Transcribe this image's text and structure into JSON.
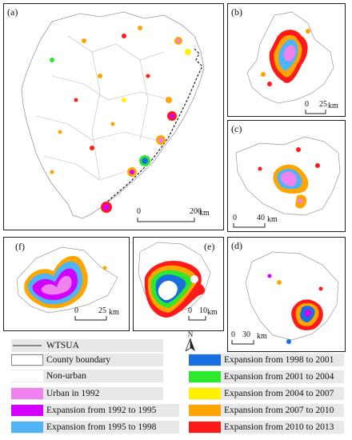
{
  "panels": {
    "a": {
      "label": "(a)",
      "scale_zero": "0",
      "scale_max": "200",
      "scale_unit": "km"
    },
    "b": {
      "label": "(b)",
      "scale_zero": "0",
      "scale_max": "25",
      "scale_unit": "km"
    },
    "c": {
      "label": "(c)",
      "scale_zero": "0",
      "scale_max": "40",
      "scale_unit": "km"
    },
    "d": {
      "label": "(d)",
      "scale_zero": "0",
      "scale_max": "30",
      "scale_unit": "km"
    },
    "e": {
      "label": "(e)",
      "scale_zero": "0",
      "scale_max": "10",
      "scale_unit": "km"
    },
    "f": {
      "label": "(f)",
      "scale_zero": "0",
      "scale_max": "25",
      "scale_unit": "km"
    }
  },
  "north_arrow": {
    "label": "N"
  },
  "legend": {
    "left": [
      {
        "label": "WTSUA",
        "color": "#222222",
        "kind": "line"
      },
      {
        "label": "County boundary",
        "color": "#ffffff",
        "kind": "box"
      },
      {
        "label": "Non-urban",
        "color": "#ffffff",
        "kind": "fill"
      },
      {
        "label": "Urban in 1992",
        "color": "#ee82ee",
        "kind": "fill"
      },
      {
        "label": "Expansion from 1992 to 1995",
        "color": "#d400ff",
        "kind": "fill"
      },
      {
        "label": "Expansion from 1995 to 1998",
        "color": "#4fb4f5",
        "kind": "fill"
      }
    ],
    "right": [
      {
        "label": "Expansion from 1998 to 2001",
        "color": "#1a6fe0",
        "kind": "fill"
      },
      {
        "label": "Expansion from 2001 to 2004",
        "color": "#2ee82e",
        "kind": "fill"
      },
      {
        "label": "Expansion from 2004 to 2007",
        "color": "#fff200",
        "kind": "fill"
      },
      {
        "label": "Expansion from 2007 to 2010",
        "color": "#ffa500",
        "kind": "fill"
      },
      {
        "label": "Expansion from 2010 to 2013",
        "color": "#ff1a1a",
        "kind": "fill"
      }
    ]
  }
}
